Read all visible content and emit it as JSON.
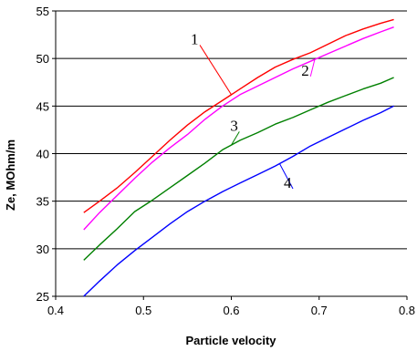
{
  "chart_data": {
    "type": "line",
    "title": "",
    "xlabel": "Particle velocity",
    "ylabel": "Ze, MOhm/m",
    "xlim": [
      0.4,
      0.8
    ],
    "ylim": [
      25,
      55
    ],
    "xticks": [
      0.4,
      0.5,
      0.6,
      0.7,
      0.8
    ],
    "xtick_labels": [
      "0.4",
      "0.5",
      "0.6",
      "0.7",
      "0.8"
    ],
    "yticks": [
      25,
      30,
      35,
      40,
      45,
      50,
      55
    ],
    "ytick_labels": [
      "25",
      "30",
      "35",
      "40",
      "45",
      "50",
      "55"
    ],
    "grid": "horizontal",
    "series": [
      {
        "name": "1",
        "color": "#ff0000",
        "x": [
          0.432,
          0.45,
          0.47,
          0.49,
          0.51,
          0.53,
          0.55,
          0.57,
          0.59,
          0.61,
          0.63,
          0.65,
          0.67,
          0.69,
          0.71,
          0.73,
          0.75,
          0.77,
          0.785
        ],
        "y": [
          33.8,
          35.0,
          36.4,
          38.0,
          39.7,
          41.4,
          43.0,
          44.4,
          45.6,
          46.8,
          48.0,
          49.1,
          49.9,
          50.6,
          51.5,
          52.4,
          53.1,
          53.7,
          54.1
        ]
      },
      {
        "name": "2",
        "color": "#ff00ff",
        "x": [
          0.432,
          0.45,
          0.47,
          0.49,
          0.51,
          0.53,
          0.55,
          0.57,
          0.59,
          0.61,
          0.63,
          0.65,
          0.67,
          0.69,
          0.71,
          0.73,
          0.75,
          0.77,
          0.785
        ],
        "y": [
          32.0,
          33.8,
          35.6,
          37.4,
          39.1,
          40.6,
          42.0,
          43.6,
          45.0,
          46.2,
          47.1,
          48.0,
          48.9,
          49.7,
          50.5,
          51.3,
          52.1,
          52.8,
          53.3
        ]
      },
      {
        "name": "3",
        "color": "#008000",
        "x": [
          0.432,
          0.45,
          0.47,
          0.49,
          0.51,
          0.53,
          0.55,
          0.57,
          0.59,
          0.61,
          0.63,
          0.65,
          0.67,
          0.69,
          0.71,
          0.73,
          0.75,
          0.77,
          0.785
        ],
        "y": [
          28.8,
          30.4,
          32.1,
          33.9,
          35.1,
          36.4,
          37.7,
          39.0,
          40.4,
          41.4,
          42.2,
          43.1,
          43.8,
          44.6,
          45.4,
          46.1,
          46.8,
          47.4,
          48.0
        ]
      },
      {
        "name": "4",
        "color": "#0000ff",
        "x": [
          0.432,
          0.45,
          0.47,
          0.49,
          0.51,
          0.53,
          0.55,
          0.57,
          0.59,
          0.61,
          0.63,
          0.65,
          0.67,
          0.69,
          0.71,
          0.73,
          0.75,
          0.77,
          0.785
        ],
        "y": [
          25.0,
          26.6,
          28.3,
          29.8,
          31.2,
          32.6,
          33.9,
          35.0,
          36.0,
          36.9,
          37.8,
          38.7,
          39.7,
          40.8,
          41.7,
          42.6,
          43.5,
          44.3,
          45.0
        ]
      }
    ],
    "annotations": [
      {
        "text": "1",
        "series": "1",
        "at_x": 0.6,
        "label_x": 0.56,
        "label_y": 51.7
      },
      {
        "text": "2",
        "series": "2",
        "at_x": 0.695,
        "label_x": 0.686,
        "label_y": 48.4
      },
      {
        "text": "3",
        "series": "3",
        "at_x": 0.6,
        "label_x": 0.605,
        "label_y": 42.6
      },
      {
        "text": "4",
        "series": "4",
        "at_x": 0.655,
        "label_x": 0.666,
        "label_y": 36.6
      }
    ]
  }
}
